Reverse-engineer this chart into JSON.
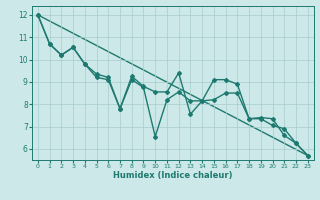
{
  "xlabel": "Humidex (Indice chaleur)",
  "xlim": [
    -0.5,
    23.5
  ],
  "ylim": [
    5.5,
    12.4
  ],
  "xticks": [
    0,
    1,
    2,
    3,
    4,
    5,
    6,
    7,
    8,
    9,
    10,
    11,
    12,
    13,
    14,
    15,
    16,
    17,
    18,
    19,
    20,
    21,
    22,
    23
  ],
  "yticks": [
    6,
    7,
    8,
    9,
    10,
    11,
    12
  ],
  "background_color": "#cce8e8",
  "grid_color": "#a8cccc",
  "line_color": "#1e7a70",
  "line1_x": [
    0,
    1,
    2,
    3,
    4,
    5,
    6,
    7,
    8,
    9,
    10,
    11,
    12,
    13,
    14,
    15,
    16,
    17,
    18,
    19,
    20,
    21,
    22,
    23
  ],
  "line1_y": [
    12.0,
    10.7,
    10.2,
    10.55,
    9.8,
    9.35,
    9.2,
    7.8,
    9.25,
    8.8,
    8.55,
    8.55,
    9.4,
    7.55,
    8.15,
    9.1,
    9.1,
    8.9,
    7.35,
    7.35,
    7.05,
    6.9,
    6.25,
    5.7
  ],
  "line2_x": [
    0,
    1,
    2,
    3,
    4,
    5,
    6,
    7,
    8,
    9,
    10,
    11,
    12,
    13,
    14,
    15,
    16,
    17,
    18,
    19,
    20,
    21,
    22,
    23
  ],
  "line2_y": [
    12.0,
    10.7,
    10.2,
    10.55,
    9.8,
    9.2,
    9.1,
    7.8,
    9.1,
    8.75,
    6.55,
    8.2,
    8.55,
    8.15,
    8.15,
    8.2,
    8.5,
    8.5,
    7.35,
    7.4,
    7.35,
    6.6,
    6.25,
    5.7
  ],
  "line3_x": [
    0,
    23
  ],
  "line3_y": [
    12.0,
    5.7
  ],
  "marker": "D",
  "marker_size": 2.0,
  "linewidth": 1.0
}
